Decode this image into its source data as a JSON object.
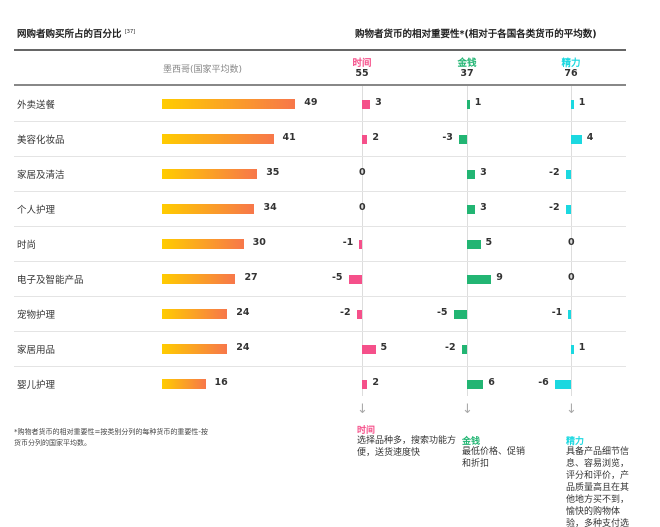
{
  "chart_data": {
    "type": "bar",
    "left_title": "网购者购买所占的百分比",
    "left_title_ref": "[37]",
    "right_title": "购物者货币的相对重要性*(相对于各国各类货币的平均数)",
    "country_label": "墨西哥(国家平均数)",
    "categories": [
      "外卖送餐",
      "美容化妆品",
      "家居及清洁",
      "个人护理",
      "时尚",
      "电子及智能产品",
      "宠物护理",
      "家居用品",
      "婴儿护理"
    ],
    "share_values": [
      49,
      41,
      35,
      34,
      30,
      27,
      24,
      24,
      16
    ],
    "currencies": [
      {
        "name": "时间",
        "average": "55",
        "color": "#f5508a",
        "values": [
          3,
          2,
          0,
          0,
          -1,
          -5,
          -2,
          5,
          2
        ],
        "desc": "选择品种多，搜索功能方便，送货速度快"
      },
      {
        "name": "金钱",
        "average": "37",
        "color": "#22b573",
        "values": [
          1,
          -3,
          3,
          3,
          5,
          9,
          -5,
          -2,
          6
        ],
        "desc": "最低价格、促销和折扣"
      },
      {
        "name": "精力",
        "average": "76",
        "color": "#1bd8e0",
        "values": [
          1,
          4,
          -2,
          -2,
          0,
          0,
          -1,
          1,
          -6
        ],
        "desc": "具备产品细节信息、容易浏览，评分和评价，产品质量高且在其他地方买不到，愉快的购物体验，多种支付选项"
      }
    ],
    "share_bar_gradient": [
      "#ffcc00",
      "#f7774a"
    ]
  },
  "footnote": "*购物者货币的相对重要性=按类别分列的每种货币的重要性-按货币分列的国家平均数。"
}
